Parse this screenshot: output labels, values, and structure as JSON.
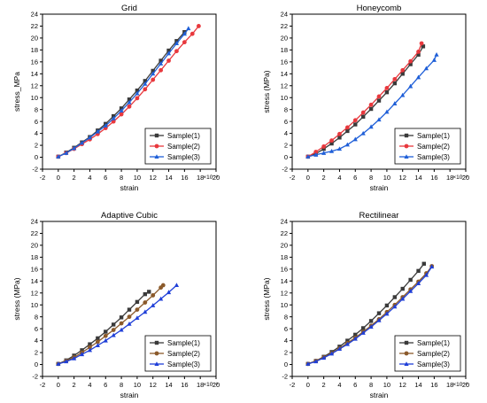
{
  "chart_data": [
    {
      "type": "line",
      "title": "Grid",
      "xlabel": "strain",
      "ylabel": "stress_MPa",
      "x_multiplier_label": "×10⁻³",
      "xlim": [
        -2,
        20
      ],
      "ylim": [
        -2,
        24
      ],
      "xticks": [
        "-2",
        "0",
        "2",
        "4",
        "6",
        "8",
        "10",
        "12",
        "14",
        "16",
        "18",
        "20"
      ],
      "yticks": [
        "-2",
        "0",
        "2",
        "4",
        "6",
        "8",
        "10",
        "12",
        "14",
        "16",
        "18",
        "20",
        "22",
        "24"
      ],
      "legend_position": "bottom-right",
      "series": [
        {
          "name": "Sample(1)",
          "color": "#3a3a3a",
          "marker": "square",
          "x": [
            0,
            1,
            2,
            3,
            4,
            5,
            6,
            7,
            8,
            9,
            10,
            11,
            12,
            13,
            14,
            15,
            16
          ],
          "y": [
            0.1,
            0.8,
            1.6,
            2.5,
            3.4,
            4.5,
            5.6,
            6.9,
            8.2,
            9.7,
            11.2,
            12.8,
            14.5,
            16.2,
            17.9,
            19.5,
            21.0
          ]
        },
        {
          "name": "Sample(2)",
          "color": "#e8383d",
          "marker": "circle",
          "x": [
            0,
            1,
            2,
            3,
            4,
            5,
            6,
            7,
            8,
            9,
            10,
            11,
            12,
            13,
            14,
            15,
            16,
            17,
            17.8
          ],
          "y": [
            0.1,
            0.7,
            1.4,
            2.2,
            3.0,
            3.9,
            4.9,
            6.0,
            7.2,
            8.5,
            9.9,
            11.4,
            13.0,
            14.6,
            16.2,
            17.8,
            19.3,
            20.7,
            22.0
          ]
        },
        {
          "name": "Sample(3)",
          "color": "#1f5fd8",
          "marker": "triangle",
          "x": [
            0,
            1,
            2,
            3,
            4,
            5,
            6,
            7,
            8,
            9,
            10,
            11,
            12,
            13,
            14,
            15,
            16,
            16.5
          ],
          "y": [
            0.1,
            0.7,
            1.5,
            2.4,
            3.3,
            4.3,
            5.3,
            6.5,
            7.8,
            9.2,
            10.7,
            12.3,
            14.0,
            15.7,
            17.4,
            19.1,
            20.7,
            21.6
          ]
        }
      ]
    },
    {
      "type": "line",
      "title": "Honeycomb",
      "xlabel": "strain",
      "ylabel": "stress (MPa)",
      "x_multiplier_label": "×10⁻³",
      "xlim": [
        -2,
        20
      ],
      "ylim": [
        -2,
        24
      ],
      "xticks": [
        "-2",
        "0",
        "2",
        "4",
        "6",
        "8",
        "10",
        "12",
        "14",
        "16",
        "18",
        "20"
      ],
      "yticks": [
        "-2",
        "0",
        "2",
        "4",
        "6",
        "8",
        "10",
        "12",
        "14",
        "16",
        "18",
        "20",
        "22",
        "24"
      ],
      "legend_position": "bottom-right",
      "series": [
        {
          "name": "Sample(1)",
          "color": "#3a3a3a",
          "marker": "square",
          "x": [
            0,
            1,
            2,
            3,
            4,
            5,
            6,
            7,
            8,
            9,
            10,
            11,
            12,
            13,
            14,
            14.6
          ],
          "y": [
            0.1,
            0.6,
            1.4,
            2.3,
            3.3,
            4.4,
            5.5,
            6.8,
            8.1,
            9.5,
            10.9,
            12.4,
            14.0,
            15.6,
            17.2,
            18.6
          ]
        },
        {
          "name": "Sample(2)",
          "color": "#e8383d",
          "marker": "circle",
          "x": [
            0,
            1,
            2,
            3,
            4,
            5,
            6,
            7,
            8,
            9,
            10,
            11,
            12,
            13,
            14,
            14.4
          ],
          "y": [
            0.1,
            0.9,
            1.8,
            2.8,
            3.9,
            5.0,
            6.2,
            7.5,
            8.8,
            10.2,
            11.6,
            13.1,
            14.6,
            16.1,
            17.7,
            19.1
          ]
        },
        {
          "name": "Sample(3)",
          "color": "#1f5fd8",
          "marker": "triangle",
          "x": [
            0,
            1,
            2,
            3,
            4,
            5,
            6,
            7,
            8,
            9,
            10,
            11,
            12,
            13,
            14,
            15,
            16,
            16.3
          ],
          "y": [
            0.1,
            0.4,
            0.7,
            1.0,
            1.4,
            2.1,
            3.0,
            4.0,
            5.1,
            6.3,
            7.6,
            9.0,
            10.4,
            11.9,
            13.4,
            14.9,
            16.3,
            17.2
          ]
        }
      ]
    },
    {
      "type": "line",
      "title": "Adaptive Cubic",
      "xlabel": "strain",
      "ylabel": "stress (MPa)",
      "x_multiplier_label": "×10⁻³",
      "xlim": [
        -2,
        20
      ],
      "ylim": [
        -2,
        24
      ],
      "xticks": [
        "-2",
        "0",
        "2",
        "4",
        "6",
        "8",
        "10",
        "12",
        "14",
        "16",
        "18",
        "20"
      ],
      "yticks": [
        "-2",
        "0",
        "2",
        "4",
        "6",
        "8",
        "10",
        "12",
        "14",
        "16",
        "18",
        "20",
        "22",
        "24"
      ],
      "legend_position": "bottom-right",
      "series": [
        {
          "name": "Sample(1)",
          "color": "#3a3a3a",
          "marker": "square",
          "x": [
            0,
            1,
            2,
            3,
            4,
            5,
            6,
            7,
            8,
            9,
            10,
            11,
            11.5
          ],
          "y": [
            0.1,
            0.7,
            1.5,
            2.4,
            3.4,
            4.4,
            5.5,
            6.7,
            7.9,
            9.2,
            10.5,
            11.8,
            12.2
          ]
        },
        {
          "name": "Sample(2)",
          "color": "#8b5a2b",
          "marker": "circle",
          "x": [
            0,
            1,
            2,
            3,
            4,
            5,
            6,
            7,
            8,
            9,
            10,
            11,
            12,
            13,
            13.3
          ],
          "y": [
            0.1,
            0.6,
            1.2,
            2.0,
            2.9,
            3.8,
            4.8,
            5.8,
            6.9,
            8.0,
            9.2,
            10.4,
            11.6,
            12.9,
            13.3
          ]
        },
        {
          "name": "Sample(3)",
          "color": "#1f3fd8",
          "marker": "triangle",
          "x": [
            0,
            1,
            2,
            3,
            4,
            5,
            6,
            7,
            8,
            9,
            10,
            11,
            12,
            13,
            14,
            15
          ],
          "y": [
            0.1,
            0.5,
            1.0,
            1.7,
            2.4,
            3.2,
            4.0,
            4.9,
            5.8,
            6.8,
            7.8,
            8.8,
            9.9,
            11.0,
            12.1,
            13.3
          ]
        }
      ]
    },
    {
      "type": "line",
      "title": "Rectilinear",
      "xlabel": "strain",
      "ylabel": "stress (MPa)",
      "x_multiplier_label": "×10⁻³",
      "xlim": [
        -2,
        20
      ],
      "ylim": [
        -2,
        24
      ],
      "xticks": [
        "-2",
        "0",
        "2",
        "4",
        "6",
        "8",
        "10",
        "12",
        "14",
        "16",
        "18",
        "20"
      ],
      "yticks": [
        "-2",
        "0",
        "2",
        "4",
        "6",
        "8",
        "10",
        "12",
        "14",
        "16",
        "18",
        "20",
        "22",
        "24"
      ],
      "legend_position": "bottom-right",
      "series": [
        {
          "name": "Sample(1)",
          "color": "#3a3a3a",
          "marker": "square",
          "x": [
            0,
            1,
            2,
            3,
            4,
            5,
            6,
            7,
            8,
            9,
            10,
            11,
            12,
            13,
            14,
            14.7
          ],
          "y": [
            0.1,
            0.6,
            1.3,
            2.1,
            3.0,
            4.0,
            5.0,
            6.1,
            7.3,
            8.6,
            9.9,
            11.3,
            12.7,
            14.2,
            15.7,
            16.9
          ]
        },
        {
          "name": "Sample(2)",
          "color": "#8b5a2b",
          "marker": "circle",
          "x": [
            0,
            1,
            2,
            3,
            4,
            5,
            6,
            7,
            8,
            9,
            10,
            11,
            12,
            13,
            14,
            15,
            15.7
          ],
          "y": [
            0.1,
            0.6,
            1.2,
            1.9,
            2.7,
            3.6,
            4.5,
            5.5,
            6.5,
            7.6,
            8.8,
            10.0,
            11.3,
            12.6,
            13.9,
            15.3,
            16.5
          ]
        },
        {
          "name": "Sample(3)",
          "color": "#1f3fd8",
          "marker": "triangle",
          "x": [
            0,
            1,
            2,
            3,
            4,
            5,
            6,
            7,
            8,
            9,
            10,
            11,
            12,
            13,
            14,
            15,
            15.7
          ],
          "y": [
            0.1,
            0.5,
            1.1,
            1.8,
            2.6,
            3.4,
            4.3,
            5.3,
            6.3,
            7.4,
            8.5,
            9.7,
            11.0,
            12.3,
            13.6,
            15.0,
            16.4
          ]
        }
      ]
    }
  ]
}
